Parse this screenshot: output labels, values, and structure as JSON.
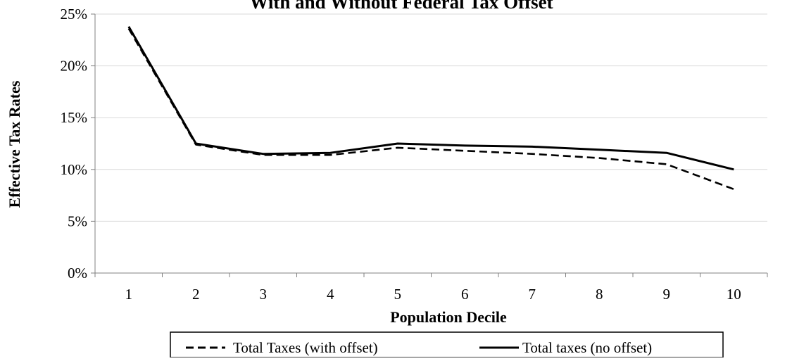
{
  "chart_data": {
    "type": "line",
    "title": "With and Without Federal Tax Offset",
    "xlabel": "Population Decile",
    "ylabel": "Effective Tax Rates",
    "categories": [
      "1",
      "2",
      "3",
      "4",
      "5",
      "6",
      "7",
      "8",
      "9",
      "10"
    ],
    "y_ticks": [
      "0%",
      "5%",
      "10%",
      "15%",
      "20%",
      "25%"
    ],
    "ylim": [
      0,
      25
    ],
    "grid": true,
    "legend_position": "bottom",
    "series": [
      {
        "name": "Total Taxes (with offset)",
        "values": [
          23.6,
          12.4,
          11.4,
          11.4,
          12.1,
          11.8,
          11.5,
          11.1,
          10.5,
          8.1
        ],
        "line_style": "dashed",
        "color": "#000000"
      },
      {
        "name": "Total taxes (no offset)",
        "values": [
          23.8,
          12.5,
          11.5,
          11.6,
          12.5,
          12.3,
          12.2,
          11.9,
          11.6,
          10.0
        ],
        "line_style": "solid",
        "color": "#000000"
      }
    ]
  }
}
